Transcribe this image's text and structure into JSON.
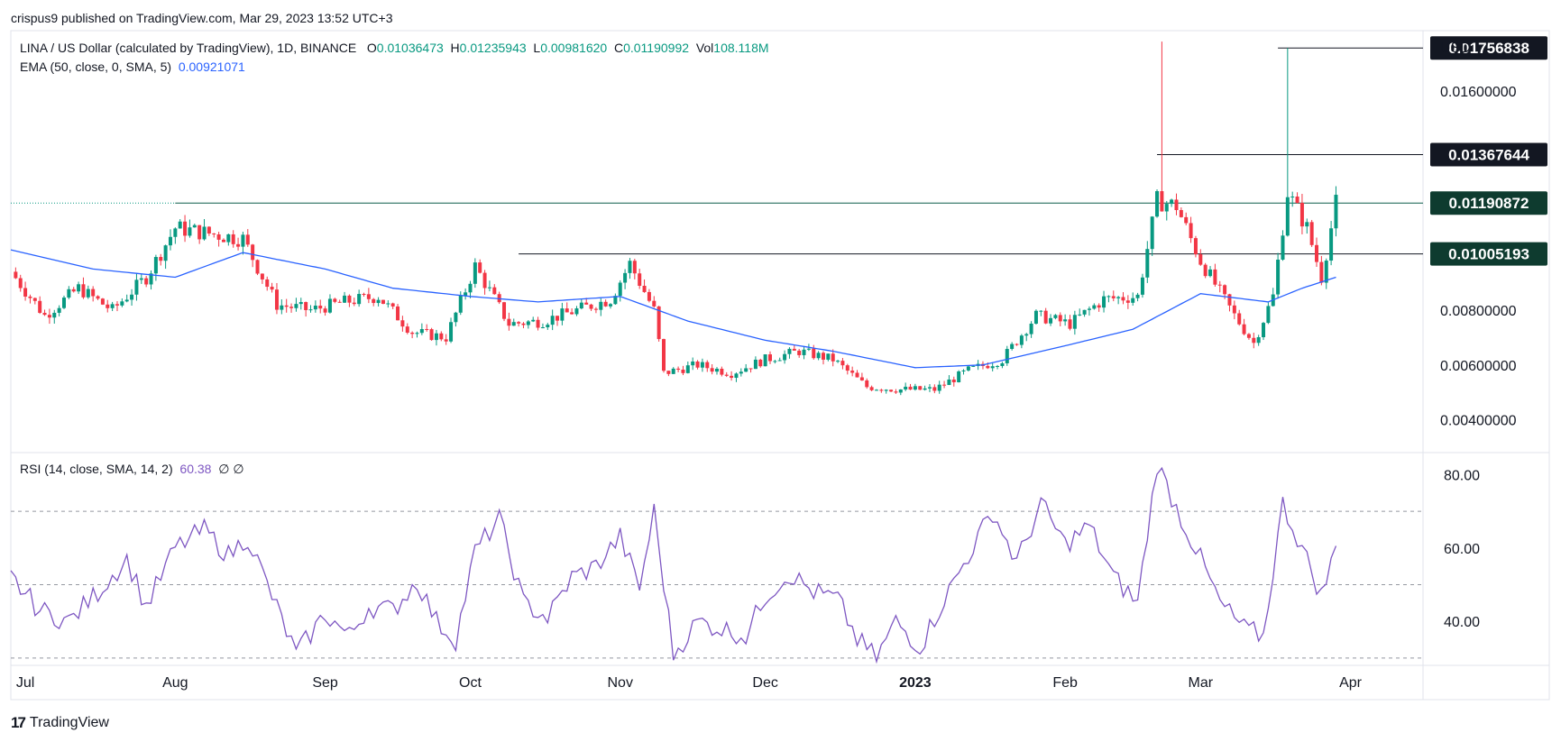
{
  "header": {
    "publisher_line": "crispus9 published on TradingView.com, Mar 29, 2023 13:52 UTC+3"
  },
  "legend": {
    "symbol": "LINA / US Dollar (calculated by TradingView), 1D, BINANCE",
    "o_label": "O",
    "o_value": "0.01036473",
    "h_label": "H",
    "h_value": "0.01235943",
    "l_label": "L",
    "l_value": "0.00981620",
    "c_label": "C",
    "c_value": "0.01190992",
    "vol_label": "Vol",
    "vol_value": "108.118M",
    "ema_label": "EMA (50, close, 0, SMA, 5)",
    "ema_value": "0.00921071",
    "rsi_label": "RSI (14, close, SMA, 14, 2)",
    "rsi_value": "60.38",
    "rsi_extra": "∅ ∅"
  },
  "footer": {
    "brand": "TradingView",
    "logo_icon": "tradingview-logo-icon"
  },
  "colors": {
    "up": "#089981",
    "down": "#f23645",
    "ema": "#2962ff",
    "rsi": "#7e57c2",
    "price_label_dark": "#131722",
    "price_label_green": "#0e3b2f",
    "level_line": "#131722"
  },
  "chart_data": [
    {
      "type": "candlestick",
      "currency_label": "USD",
      "ylim": [
        0.0028,
        0.0182
      ],
      "y_ticks": [
        "0.01600000",
        "0.00800000",
        "0.00600000",
        "0.00400000"
      ],
      "x_ticks": [
        "Jul",
        "Aug",
        "Sep",
        "Oct",
        "Nov",
        "Dec",
        "2023",
        "Feb",
        "Mar",
        "Apr"
      ],
      "x_tick_dates": [
        "2022-07-01",
        "2022-08-01",
        "2022-09-01",
        "2022-10-01",
        "2022-11-01",
        "2022-12-01",
        "2023-01-01",
        "2023-02-01",
        "2023-03-01",
        "2023-04-01"
      ],
      "x_range": [
        "2022-06-28",
        "2023-04-16"
      ],
      "price_labels": [
        {
          "value": "0.01756838",
          "style": "dark"
        },
        {
          "value": "0.01367644",
          "style": "dark"
        },
        {
          "value": "0.01190872",
          "style": "green"
        },
        {
          "value": "0.01005193",
          "style": "green"
        }
      ],
      "horizontal_levels": [
        {
          "value": 0.01756838,
          "from": "2023-03-17",
          "to": "2023-04-16"
        },
        {
          "value": 0.01367644,
          "from": "2023-02-20",
          "to": "2023-04-16"
        },
        {
          "value": 0.01190872,
          "from": "2022-08-01",
          "to": "2023-04-16"
        },
        {
          "value": 0.01005193,
          "from": "2022-10-11",
          "to": "2023-04-16"
        }
      ],
      "close_path": [
        [
          "2022-06-28",
          0.0094
        ],
        [
          "2022-07-05",
          0.0078
        ],
        [
          "2022-07-12",
          0.0088
        ],
        [
          "2022-07-19",
          0.008
        ],
        [
          "2022-07-26",
          0.0092
        ],
        [
          "2022-08-01",
          0.011
        ],
        [
          "2022-08-08",
          0.0108
        ],
        [
          "2022-08-15",
          0.0106
        ],
        [
          "2022-08-22",
          0.0082
        ],
        [
          "2022-08-29",
          0.008
        ],
        [
          "2022-09-05",
          0.0083
        ],
        [
          "2022-09-12",
          0.0085
        ],
        [
          "2022-09-19",
          0.0072
        ],
        [
          "2022-09-26",
          0.007
        ],
        [
          "2022-10-02",
          0.0096
        ],
        [
          "2022-10-09",
          0.0075
        ],
        [
          "2022-10-16",
          0.0076
        ],
        [
          "2022-10-23",
          0.008
        ],
        [
          "2022-10-30",
          0.0084
        ],
        [
          "2022-11-03",
          0.0097
        ],
        [
          "2022-11-08",
          0.008
        ],
        [
          "2022-11-10",
          0.0057
        ],
        [
          "2022-11-17",
          0.006
        ],
        [
          "2022-11-24",
          0.0057
        ],
        [
          "2022-12-01",
          0.0062
        ],
        [
          "2022-12-08",
          0.0065
        ],
        [
          "2022-12-15",
          0.0062
        ],
        [
          "2022-12-22",
          0.0052
        ],
        [
          "2022-12-29",
          0.0051
        ],
        [
          "2023-01-05",
          0.0051
        ],
        [
          "2023-01-12",
          0.0058
        ],
        [
          "2023-01-19",
          0.0062
        ],
        [
          "2023-01-26",
          0.0078
        ],
        [
          "2023-02-02",
          0.0075
        ],
        [
          "2023-02-09",
          0.0084
        ],
        [
          "2023-02-16",
          0.0085
        ],
        [
          "2023-02-20",
          0.012
        ],
        [
          "2023-02-24",
          0.0118
        ],
        [
          "2023-03-01",
          0.0098
        ],
        [
          "2023-03-08",
          0.0078
        ],
        [
          "2023-03-12",
          0.0068
        ],
        [
          "2023-03-16",
          0.0085
        ],
        [
          "2023-03-19",
          0.0123
        ],
        [
          "2023-03-23",
          0.011
        ],
        [
          "2023-03-26",
          0.0092
        ],
        [
          "2023-03-29",
          0.0119
        ]
      ],
      "ema_path": [
        [
          "2022-06-28",
          0.0102
        ],
        [
          "2022-07-15",
          0.0095
        ],
        [
          "2022-08-01",
          0.0092
        ],
        [
          "2022-08-15",
          0.0101
        ],
        [
          "2022-09-01",
          0.0095
        ],
        [
          "2022-09-15",
          0.0088
        ],
        [
          "2022-10-01",
          0.0085
        ],
        [
          "2022-10-15",
          0.0083
        ],
        [
          "2022-11-01",
          0.0085
        ],
        [
          "2022-11-15",
          0.0076
        ],
        [
          "2022-12-01",
          0.0069
        ],
        [
          "2022-12-15",
          0.0065
        ],
        [
          "2023-01-01",
          0.0059
        ],
        [
          "2023-01-15",
          0.006
        ],
        [
          "2023-02-01",
          0.0067
        ],
        [
          "2023-02-15",
          0.0073
        ],
        [
          "2023-03-01",
          0.0086
        ],
        [
          "2023-03-15",
          0.0083
        ],
        [
          "2023-03-22",
          0.0088
        ],
        [
          "2023-03-29",
          0.0092
        ]
      ],
      "spikes": [
        {
          "date": "2023-02-21",
          "high": 0.0178,
          "low": 0.0115
        },
        {
          "date": "2023-03-19",
          "high": 0.01756838,
          "low": 0.0113
        }
      ],
      "candle_count": 275
    },
    {
      "type": "line",
      "name": "RSI",
      "ylim": [
        28,
        86
      ],
      "y_ticks": [
        "80.00",
        "60.00",
        "40.00"
      ],
      "bands": [
        70,
        50,
        30
      ],
      "values": [
        [
          "2022-06-28",
          52
        ],
        [
          "2022-07-04",
          43
        ],
        [
          "2022-07-10",
          40
        ],
        [
          "2022-07-16",
          48
        ],
        [
          "2022-07-22",
          57
        ],
        [
          "2022-07-26",
          44
        ],
        [
          "2022-08-01",
          60
        ],
        [
          "2022-08-07",
          65
        ],
        [
          "2022-08-12",
          58
        ],
        [
          "2022-08-16",
          63
        ],
        [
          "2022-08-20",
          50
        ],
        [
          "2022-08-26",
          31
        ],
        [
          "2022-09-01",
          42
        ],
        [
          "2022-09-06",
          36
        ],
        [
          "2022-09-10",
          44
        ],
        [
          "2022-09-15",
          43
        ],
        [
          "2022-09-20",
          51
        ],
        [
          "2022-09-24",
          40
        ],
        [
          "2022-09-28",
          35
        ],
        [
          "2022-10-02",
          59
        ],
        [
          "2022-10-07",
          68
        ],
        [
          "2022-10-12",
          45
        ],
        [
          "2022-10-17",
          41
        ],
        [
          "2022-10-22",
          52
        ],
        [
          "2022-10-27",
          55
        ],
        [
          "2022-11-01",
          63
        ],
        [
          "2022-11-05",
          49
        ],
        [
          "2022-11-08",
          70
        ],
        [
          "2022-11-12",
          31
        ],
        [
          "2022-11-17",
          40
        ],
        [
          "2022-11-22",
          38
        ],
        [
          "2022-11-27",
          36
        ],
        [
          "2022-12-01",
          47
        ],
        [
          "2022-12-06",
          53
        ],
        [
          "2022-12-11",
          48
        ],
        [
          "2022-12-16",
          46
        ],
        [
          "2022-12-20",
          35
        ],
        [
          "2022-12-24",
          30
        ],
        [
          "2022-12-28",
          40
        ],
        [
          "2023-01-02",
          33
        ],
        [
          "2023-01-07",
          46
        ],
        [
          "2023-01-12",
          58
        ],
        [
          "2023-01-17",
          70
        ],
        [
          "2023-01-22",
          56
        ],
        [
          "2023-01-27",
          72
        ],
        [
          "2023-02-01",
          61
        ],
        [
          "2023-02-06",
          66
        ],
        [
          "2023-02-11",
          52
        ],
        [
          "2023-02-16",
          45
        ],
        [
          "2023-02-20",
          83
        ],
        [
          "2023-02-25",
          68
        ],
        [
          "2023-03-01",
          57
        ],
        [
          "2023-03-05",
          45
        ],
        [
          "2023-03-10",
          38
        ],
        [
          "2023-03-14",
          36
        ],
        [
          "2023-03-18",
          72
        ],
        [
          "2023-03-22",
          60
        ],
        [
          "2023-03-26",
          47
        ],
        [
          "2023-03-29",
          60
        ]
      ]
    }
  ]
}
